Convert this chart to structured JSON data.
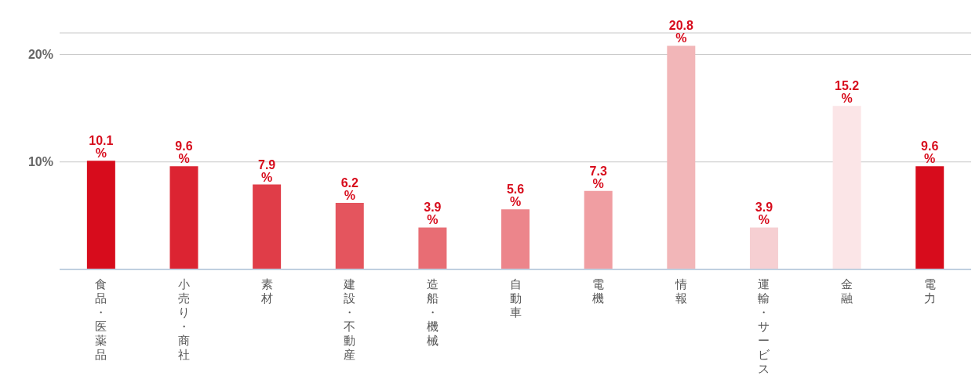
{
  "chart_data": {
    "type": "bar",
    "categories": [
      "食品・医薬品",
      "小売り・商社",
      "素材",
      "建設・不動産",
      "造船・機械",
      "自動車",
      "電機",
      "情報",
      "運輸・サービス",
      "金融",
      "電力"
    ],
    "values": [
      10.1,
      9.6,
      7.9,
      6.2,
      3.9,
      5.6,
      7.3,
      20.8,
      3.9,
      15.2,
      9.6
    ],
    "colors": [
      "#d70c1c",
      "#dc2432",
      "#e03d48",
      "#e4555e",
      "#e86d74",
      "#ec858b",
      "#f09ea2",
      "#f2b6b8",
      "#f6cfd2",
      "#fbe5e7",
      "#d70c1c"
    ],
    "value_labels": [
      "10.1 %",
      "9.6 %",
      "7.9 %",
      "6.2 %",
      "3.9 %",
      "5.6 %",
      "7.3 %",
      "20.8 %",
      "3.9 %",
      "15.2 %",
      "9.6 %"
    ],
    "ylim": [
      0,
      22
    ],
    "yticks": [
      {
        "value": 0,
        "label": null
      },
      {
        "value": 10,
        "label": "10%"
      },
      {
        "value": 20,
        "label": "20%"
      }
    ],
    "grid": "y"
  }
}
